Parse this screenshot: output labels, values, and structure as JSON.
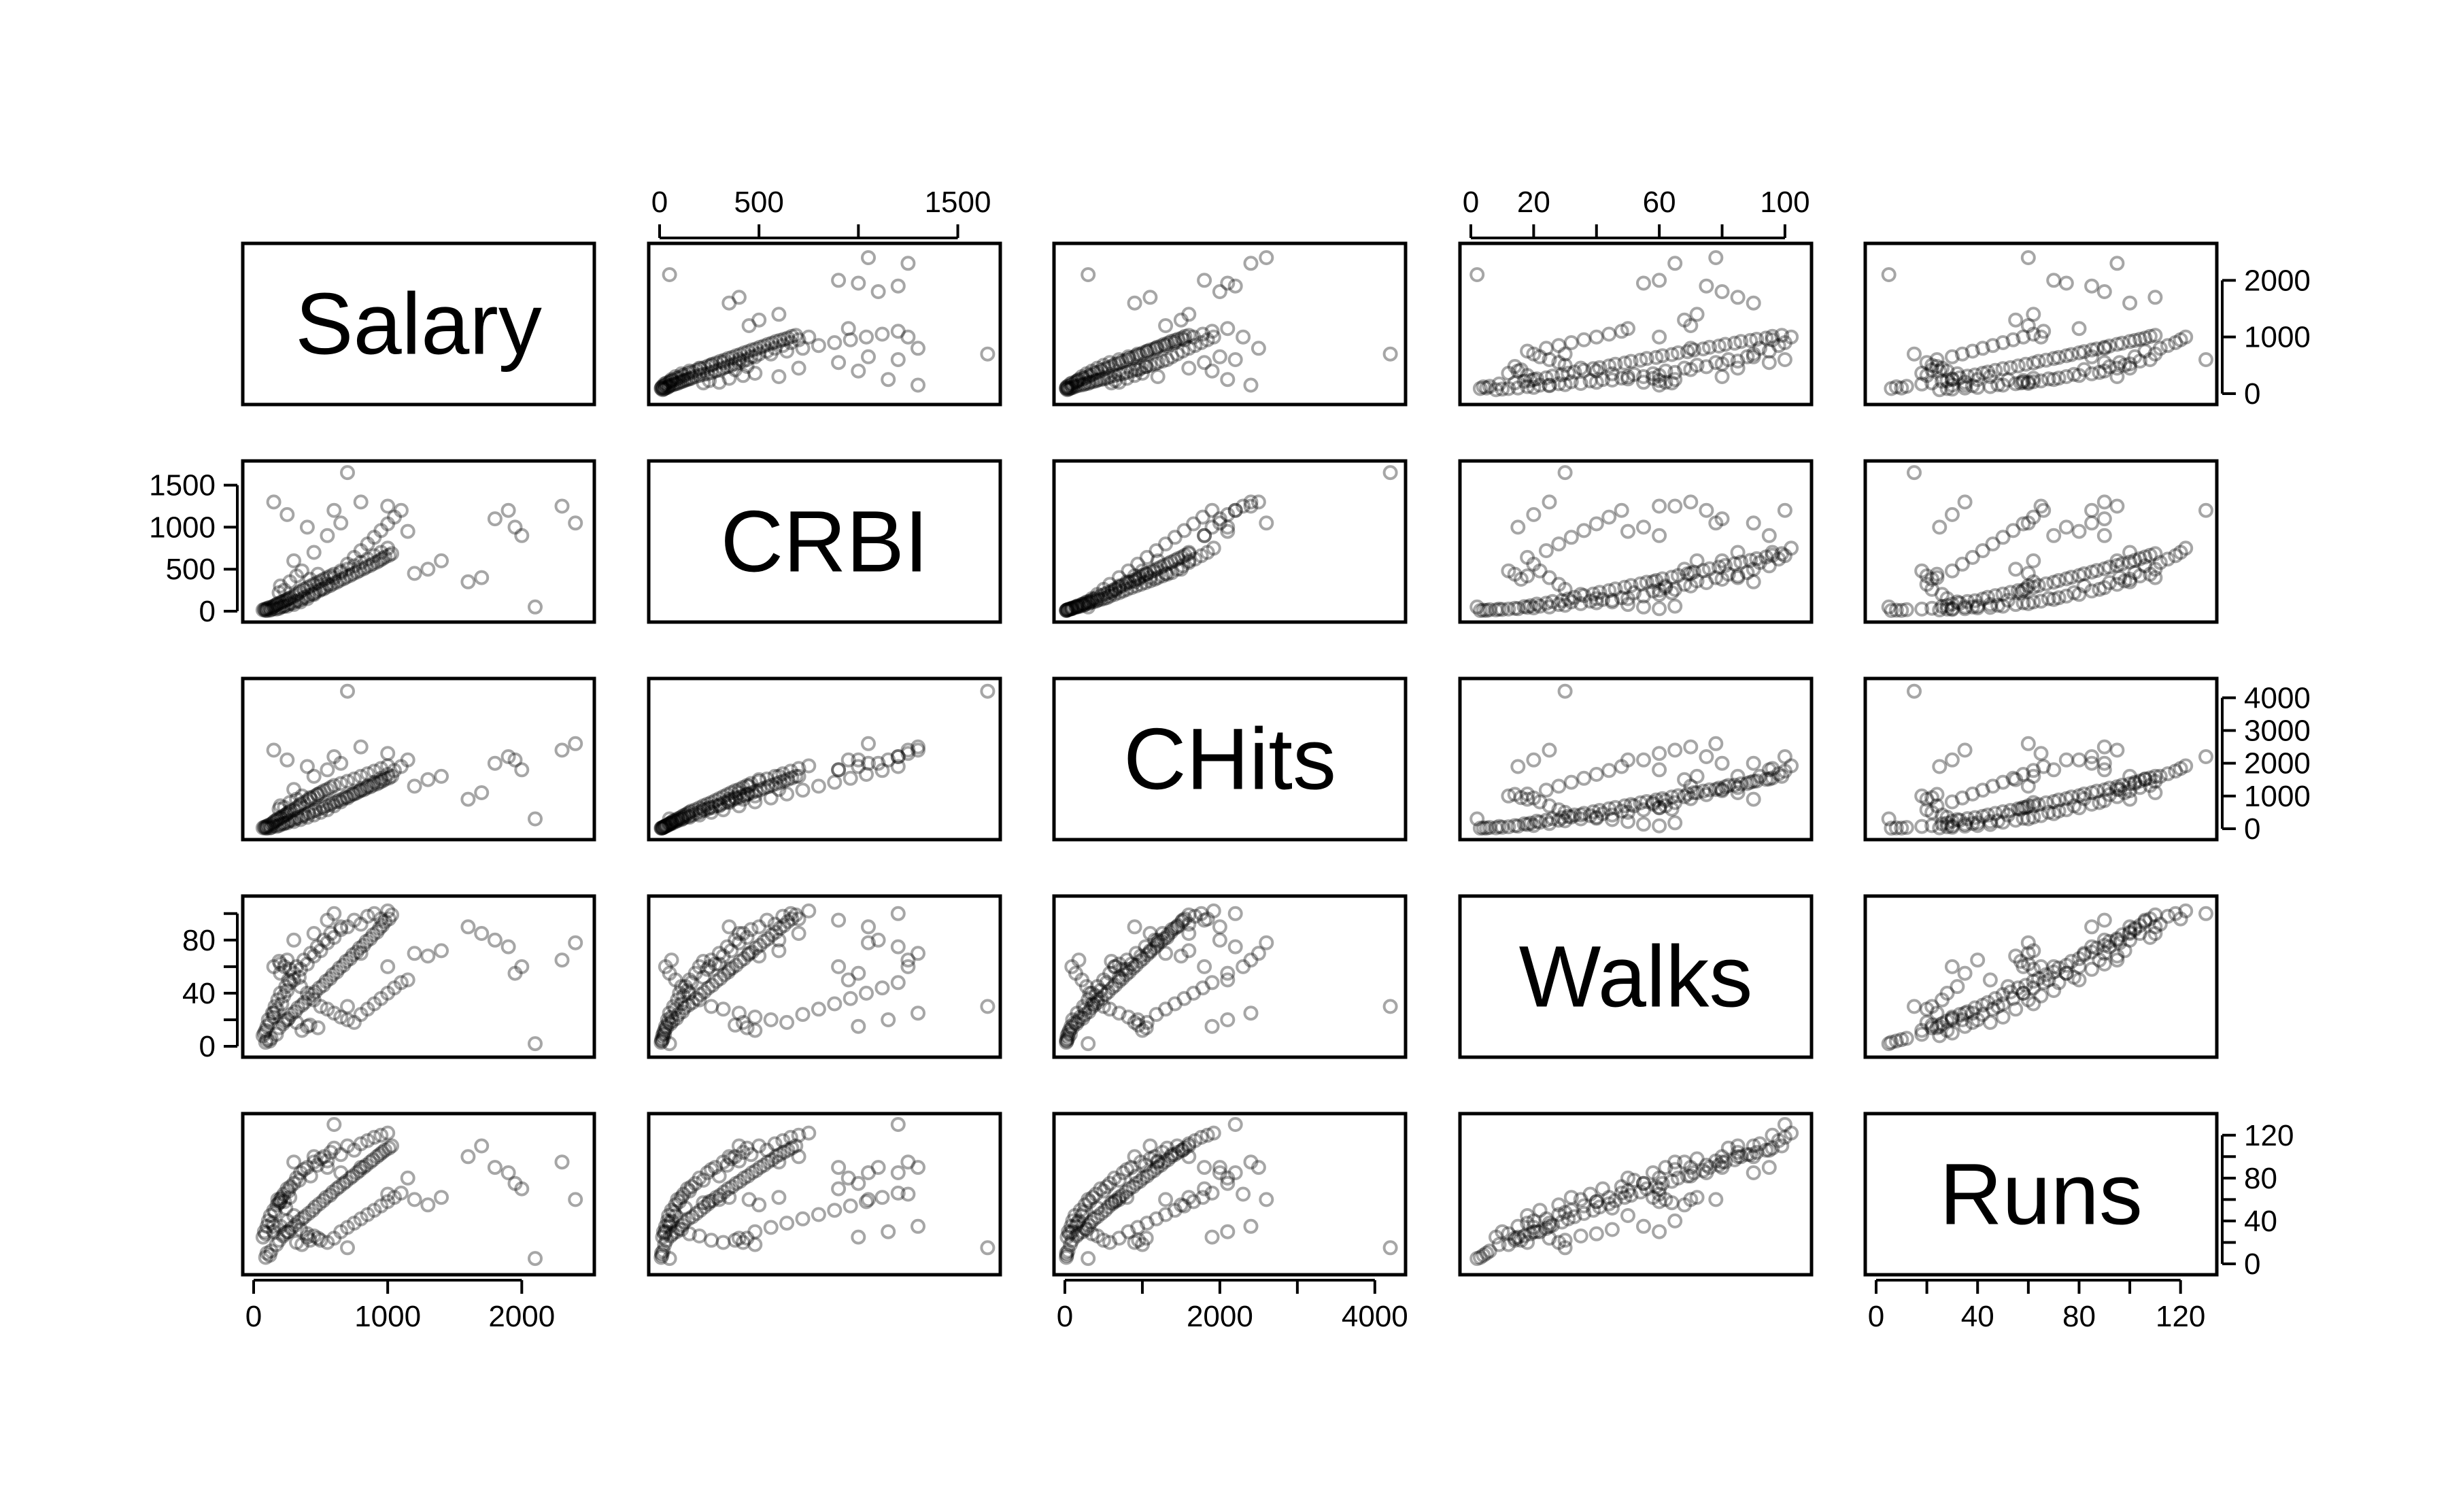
{
  "chart_data": {
    "type": "scatter",
    "chart_kind": "scatterplot-matrix",
    "variables": [
      {
        "name": "Salary",
        "ticks": [
          0,
          1000,
          2000
        ],
        "tick_labels": [
          "0",
          "1000",
          "2000"
        ],
        "range": [
          0,
          2460
        ]
      },
      {
        "name": "CRBI",
        "ticks": [
          0,
          500,
          1000,
          1500
        ],
        "tick_labels": [
          "0",
          "500",
          "1000",
          "1500"
        ],
        "range": [
          0,
          1659
        ]
      },
      {
        "name": "CHits",
        "ticks": [
          0,
          1000,
          2000,
          3000,
          4000
        ],
        "tick_labels": [
          "0",
          "1000",
          "2000",
          "3000",
          "4000"
        ],
        "range": [
          0,
          4256
        ]
      },
      {
        "name": "Walks",
        "ticks": [
          0,
          20,
          40,
          60,
          80,
          100
        ],
        "tick_labels": [
          "0",
          "20",
          "40",
          "60",
          "80",
          "100"
        ],
        "range": [
          0,
          105
        ]
      },
      {
        "name": "Runs",
        "ticks": [
          0,
          20,
          40,
          60,
          80,
          100,
          120
        ],
        "tick_labels": [
          "0",
          "20",
          "40",
          "60",
          "80",
          "100",
          "120"
        ],
        "range": [
          0,
          130
        ]
      }
    ],
    "axes_shown": {
      "top": [
        {
          "variable": 1,
          "tick_labels": [
            "0",
            "500",
            "1500"
          ]
        },
        {
          "variable": 3,
          "tick_labels": [
            "0",
            "20",
            "60",
            "100"
          ]
        }
      ],
      "bottom": [
        {
          "variable": 0,
          "tick_labels": [
            "0",
            "1000",
            "2000"
          ]
        },
        {
          "variable": 2,
          "tick_labels": [
            "0",
            "2000",
            "4000"
          ]
        },
        {
          "variable": 4,
          "tick_labels": [
            "0",
            "40",
            "80",
            "120"
          ]
        }
      ],
      "left": [
        {
          "variable": 1,
          "tick_labels": [
            "0",
            "500",
            "1000",
            "1500"
          ]
        },
        {
          "variable": 3,
          "tick_labels": [
            "0",
            "40",
            "80"
          ]
        }
      ],
      "right": [
        {
          "variable": 0,
          "tick_labels": [
            "0",
            "1000",
            "2000"
          ]
        },
        {
          "variable": 2,
          "tick_labels": [
            "0",
            "1000",
            "2000",
            "3000",
            "4000"
          ]
        },
        {
          "variable": 4,
          "tick_labels": [
            "0",
            "40",
            "80",
            "120"
          ]
        }
      ]
    },
    "grid": false,
    "legend": "none",
    "point_style": "open circle, semi-transparent black",
    "observations": [
      [
        70,
        15,
        30,
        8,
        25
      ],
      [
        80,
        20,
        45,
        10,
        30
      ],
      [
        90,
        25,
        60,
        12,
        28
      ],
      [
        100,
        30,
        80,
        15,
        35
      ],
      [
        110,
        40,
        100,
        20,
        40
      ],
      [
        125,
        45,
        130,
        18,
        45
      ],
      [
        140,
        50,
        160,
        25,
        38
      ],
      [
        150,
        60,
        200,
        22,
        50
      ],
      [
        160,
        70,
        240,
        30,
        48
      ],
      [
        175,
        80,
        260,
        28,
        55
      ],
      [
        180,
        90,
        300,
        35,
        60
      ],
      [
        200,
        100,
        320,
        40,
        58
      ],
      [
        210,
        110,
        360,
        32,
        62
      ],
      [
        225,
        120,
        400,
        38,
        65
      ],
      [
        240,
        130,
        420,
        45,
        52
      ],
      [
        250,
        140,
        460,
        42,
        70
      ],
      [
        260,
        150,
        500,
        50,
        68
      ],
      [
        275,
        160,
        540,
        48,
        72
      ],
      [
        300,
        180,
        580,
        55,
        75
      ],
      [
        320,
        200,
        640,
        60,
        80
      ],
      [
        340,
        220,
        700,
        52,
        78
      ],
      [
        350,
        240,
        750,
        58,
        85
      ],
      [
        375,
        260,
        800,
        65,
        88
      ],
      [
        400,
        280,
        860,
        62,
        90
      ],
      [
        425,
        300,
        920,
        70,
        82
      ],
      [
        450,
        320,
        980,
        68,
        95
      ],
      [
        475,
        340,
        1040,
        75,
        92
      ],
      [
        500,
        360,
        1100,
        72,
        98
      ],
      [
        525,
        380,
        1160,
        80,
        100
      ],
      [
        550,
        400,
        1200,
        78,
        96
      ],
      [
        575,
        420,
        1260,
        85,
        104
      ],
      [
        600,
        440,
        1320,
        82,
        108
      ],
      [
        650,
        460,
        1380,
        88,
        102
      ],
      [
        700,
        500,
        1450,
        90,
        110
      ],
      [
        750,
        540,
        1520,
        95,
        106
      ],
      [
        800,
        580,
        1600,
        92,
        112
      ],
      [
        850,
        620,
        1680,
        98,
        115
      ],
      [
        900,
        660,
        1760,
        100,
        118
      ],
      [
        950,
        700,
        1840,
        96,
        120
      ],
      [
        1000,
        750,
        1920,
        102,
        122
      ],
      [
        150,
        30,
        90,
        60,
        30
      ],
      [
        200,
        50,
        140,
        55,
        35
      ],
      [
        250,
        60,
        180,
        65,
        40
      ],
      [
        300,
        80,
        220,
        50,
        45
      ],
      [
        350,
        110,
        280,
        45,
        32
      ],
      [
        400,
        150,
        350,
        40,
        28
      ],
      [
        450,
        200,
        420,
        35,
        26
      ],
      [
        500,
        260,
        500,
        30,
        22
      ],
      [
        550,
        320,
        580,
        28,
        20
      ],
      [
        600,
        400,
        700,
        25,
        24
      ],
      [
        650,
        480,
        820,
        22,
        30
      ],
      [
        700,
        560,
        940,
        20,
        34
      ],
      [
        750,
        640,
        1060,
        18,
        38
      ],
      [
        800,
        720,
        1180,
        24,
        42
      ],
      [
        850,
        800,
        1300,
        28,
        46
      ],
      [
        900,
        880,
        1420,
        32,
        50
      ],
      [
        950,
        960,
        1540,
        36,
        54
      ],
      [
        1000,
        1040,
        1660,
        40,
        58
      ],
      [
        1050,
        1120,
        1780,
        44,
        62
      ],
      [
        1100,
        1200,
        1900,
        48,
        66
      ],
      [
        100,
        10,
        20,
        5,
        10
      ],
      [
        120,
        12,
        25,
        4,
        8
      ],
      [
        90,
        8,
        18,
        3,
        6
      ],
      [
        130,
        18,
        40,
        6,
        12
      ],
      [
        170,
        25,
        70,
        9,
        18
      ],
      [
        190,
        35,
        95,
        14,
        22
      ],
      [
        220,
        55,
        150,
        17,
        26
      ],
      [
        230,
        65,
        170,
        19,
        28
      ],
      [
        260,
        85,
        230,
        21,
        30
      ],
      [
        280,
        95,
        260,
        24,
        33
      ],
      [
        310,
        115,
        310,
        26,
        36
      ],
      [
        330,
        125,
        340,
        29,
        39
      ],
      [
        360,
        145,
        380,
        31,
        42
      ],
      [
        380,
        165,
        420,
        33,
        44
      ],
      [
        410,
        185,
        470,
        36,
        47
      ],
      [
        440,
        205,
        520,
        39,
        50
      ],
      [
        460,
        225,
        560,
        41,
        53
      ],
      [
        490,
        245,
        610,
        44,
        56
      ],
      [
        520,
        265,
        650,
        46,
        59
      ],
      [
        540,
        285,
        700,
        49,
        62
      ],
      [
        570,
        305,
        740,
        51,
        64
      ],
      [
        590,
        325,
        790,
        54,
        67
      ],
      [
        620,
        345,
        830,
        56,
        70
      ],
      [
        640,
        365,
        880,
        59,
        72
      ],
      [
        670,
        385,
        920,
        61,
        75
      ],
      [
        690,
        405,
        970,
        64,
        77
      ],
      [
        720,
        425,
        1010,
        66,
        80
      ],
      [
        740,
        445,
        1060,
        69,
        82
      ],
      [
        770,
        465,
        1100,
        71,
        85
      ],
      [
        790,
        485,
        1150,
        74,
        87
      ],
      [
        820,
        505,
        1190,
        76,
        90
      ],
      [
        840,
        525,
        1240,
        79,
        92
      ],
      [
        870,
        545,
        1280,
        81,
        95
      ],
      [
        890,
        565,
        1330,
        84,
        97
      ],
      [
        920,
        585,
        1370,
        86,
        100
      ],
      [
        940,
        605,
        1420,
        89,
        102
      ],
      [
        960,
        625,
        1460,
        91,
        104
      ],
      [
        980,
        645,
        1510,
        94,
        106
      ],
      [
        1010,
        665,
        1550,
        96,
        108
      ],
      [
        1030,
        685,
        1600,
        99,
        110
      ],
      [
        1200,
        450,
        1300,
        70,
        60
      ],
      [
        1300,
        500,
        1500,
        68,
        55
      ],
      [
        1400,
        600,
        1600,
        72,
        62
      ],
      [
        1600,
        350,
        900,
        90,
        100
      ],
      [
        1800,
        1100,
        2000,
        80,
        90
      ],
      [
        1900,
        1200,
        2200,
        75,
        85
      ],
      [
        2000,
        900,
        1800,
        60,
        70
      ],
      [
        2100,
        50,
        300,
        2,
        5
      ],
      [
        2300,
        1250,
        2400,
        65,
        95
      ],
      [
        2400,
        1050,
        2600,
        78,
        60
      ],
      [
        1700,
        400,
        1100,
        85,
        110
      ],
      [
        1950,
        1000,
        2100,
        55,
        75
      ],
      [
        800,
        1300,
        2500,
        70,
        90
      ],
      [
        700,
        1650,
        4200,
        30,
        15
      ],
      [
        1000,
        1250,
        2300,
        60,
        65
      ],
      [
        1150,
        950,
        2100,
        50,
        80
      ],
      [
        300,
        600,
        1200,
        80,
        95
      ],
      [
        450,
        700,
        1600,
        85,
        100
      ],
      [
        550,
        900,
        1800,
        95,
        90
      ],
      [
        650,
        1050,
        2000,
        90,
        85
      ],
      [
        400,
        1000,
        1900,
        15,
        25
      ],
      [
        250,
        1150,
        2100,
        20,
        30
      ],
      [
        150,
        1300,
        2400,
        25,
        35
      ],
      [
        600,
        1200,
        2200,
        100,
        130
      ],
      [
        200,
        300,
        700,
        62,
        60
      ],
      [
        230,
        250,
        650,
        60,
        58
      ],
      [
        270,
        350,
        800,
        58,
        62
      ],
      [
        190,
        220,
        600,
        64,
        57
      ],
      [
        320,
        420,
        900,
        18,
        20
      ],
      [
        360,
        480,
        1000,
        12,
        18
      ],
      [
        420,
        380,
        950,
        16,
        22
      ],
      [
        480,
        440,
        1050,
        14,
        24
      ]
    ]
  }
}
